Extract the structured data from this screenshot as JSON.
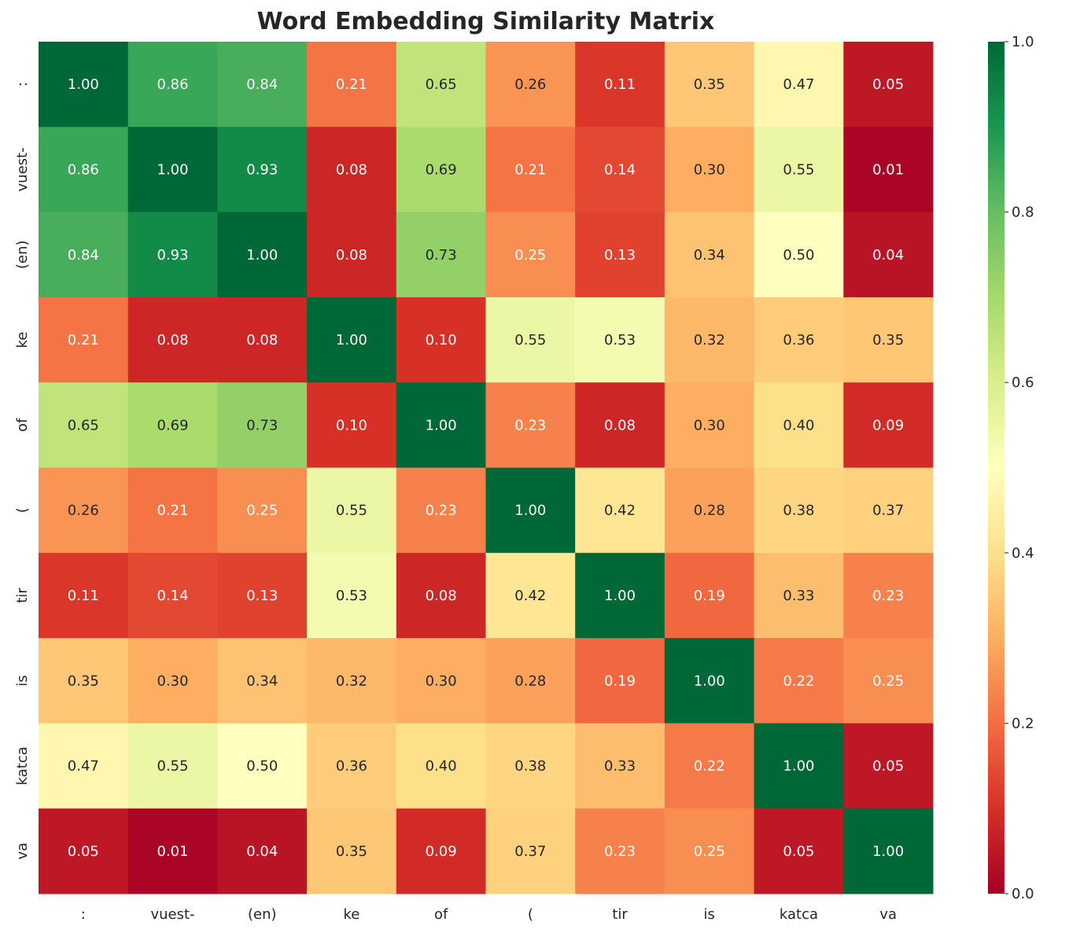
{
  "chart_data": {
    "type": "heatmap",
    "title": "Word Embedding Similarity Matrix",
    "labels": [
      ":",
      "vuest-",
      "(en)",
      "ke",
      "of",
      "(",
      "tir",
      "is",
      "katca",
      "va"
    ],
    "values": [
      [
        1.0,
        0.86,
        0.84,
        0.21,
        0.65,
        0.26,
        0.11,
        0.35,
        0.47,
        0.05
      ],
      [
        0.86,
        1.0,
        0.93,
        0.08,
        0.69,
        0.21,
        0.14,
        0.3,
        0.55,
        0.01
      ],
      [
        0.84,
        0.93,
        1.0,
        0.08,
        0.73,
        0.25,
        0.13,
        0.34,
        0.5,
        0.04
      ],
      [
        0.21,
        0.08,
        0.08,
        1.0,
        0.1,
        0.55,
        0.53,
        0.32,
        0.36,
        0.35
      ],
      [
        0.65,
        0.69,
        0.73,
        0.1,
        1.0,
        0.23,
        0.08,
        0.3,
        0.4,
        0.09
      ],
      [
        0.26,
        0.21,
        0.25,
        0.55,
        0.23,
        1.0,
        0.42,
        0.28,
        0.38,
        0.37
      ],
      [
        0.11,
        0.14,
        0.13,
        0.53,
        0.08,
        0.42,
        1.0,
        0.19,
        0.33,
        0.23
      ],
      [
        0.35,
        0.3,
        0.34,
        0.32,
        0.3,
        0.28,
        0.19,
        1.0,
        0.22,
        0.25
      ],
      [
        0.47,
        0.55,
        0.5,
        0.36,
        0.4,
        0.38,
        0.33,
        0.22,
        1.0,
        0.05
      ],
      [
        0.05,
        0.01,
        0.04,
        0.35,
        0.09,
        0.37,
        0.23,
        0.25,
        0.05,
        1.0
      ]
    ],
    "colormap": "RdYlGn",
    "vmin": 0,
    "vmax": 1,
    "colorbar_ticks": [
      "0.0",
      "0.2",
      "0.4",
      "0.6",
      "0.8",
      "1.0"
    ],
    "annotation_format": "0.00"
  }
}
